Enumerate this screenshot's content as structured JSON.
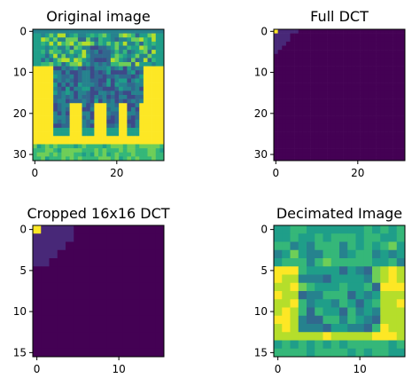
{
  "colormap": [
    "#440154",
    "#482878",
    "#3e4989",
    "#31688e",
    "#26828e",
    "#1f9e89",
    "#35b779",
    "#6ece58",
    "#b5de2b",
    "#fde725"
  ],
  "chart_data": [
    {
      "type": "heatmap",
      "title": "Original image",
      "size": [
        32,
        32
      ],
      "x_ticks": [
        0,
        20
      ],
      "y_ticks": [
        0,
        10,
        20,
        30
      ],
      "description_values": "32x32 grayscale-like image of a horse and rider statue; bright (yellow) band on rows ~10-27, dark teal figure in center, bright top-left frame region rows 1-8"
    },
    {
      "type": "heatmap",
      "title": "Full DCT",
      "size": [
        32,
        32
      ],
      "x_ticks": [
        0,
        20
      ],
      "y_ticks": [
        0,
        10,
        20,
        30
      ],
      "dc_value": "max (yellow at 0,0)"
    },
    {
      "type": "heatmap",
      "title": "Cropped 16x16 DCT",
      "size": [
        16,
        16
      ],
      "x_ticks": [
        0,
        10
      ],
      "y_ticks": [
        0,
        5,
        10,
        15
      ],
      "dc_value": "max (yellow at 0,0)"
    },
    {
      "type": "heatmap",
      "title": "Decimated Image",
      "size": [
        16,
        16
      ],
      "x_ticks": [
        0,
        10
      ],
      "y_ticks": [
        0,
        5,
        10,
        15
      ]
    }
  ]
}
